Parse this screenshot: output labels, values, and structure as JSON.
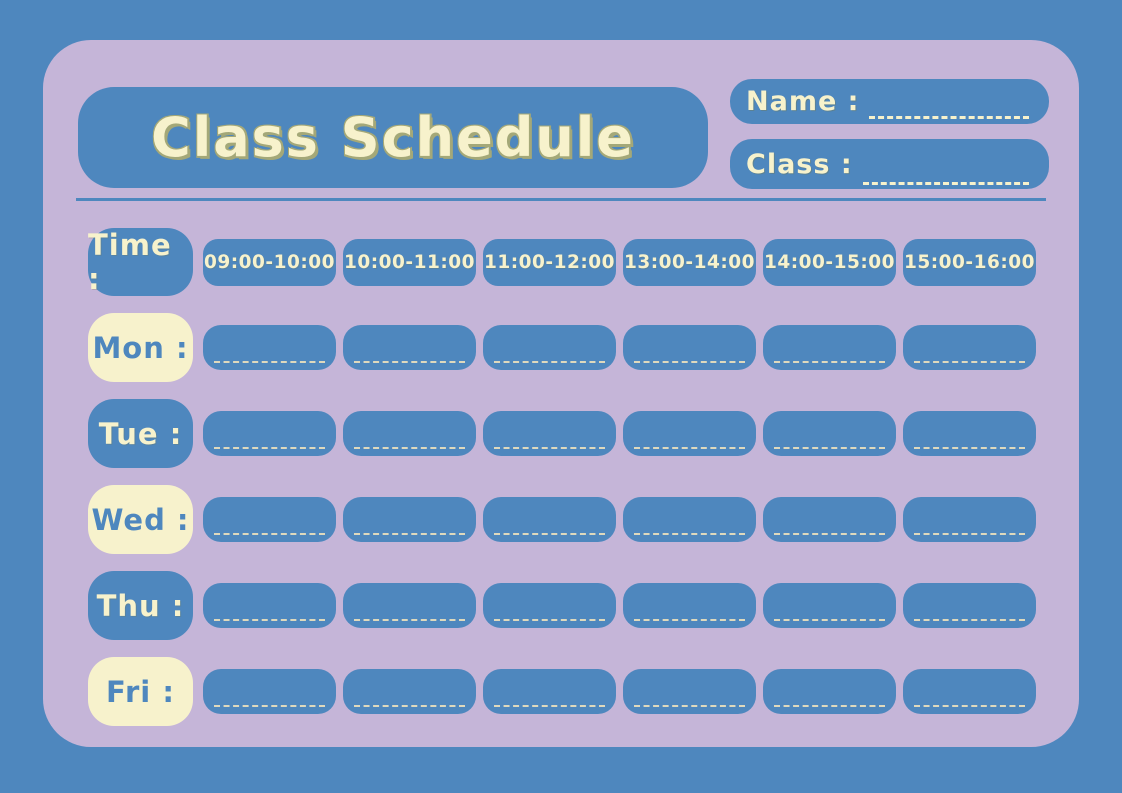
{
  "title": "Class Schedule",
  "header_fields": {
    "name": {
      "label": "Name :",
      "value": ""
    },
    "class": {
      "label": "Class :",
      "value": ""
    }
  },
  "schedule": {
    "time_label": "Time :",
    "time_slots": [
      "09:00-10:00",
      "10:00-11:00",
      "11:00-12:00",
      "13:00-14:00",
      "14:00-15:00",
      "15:00-16:00"
    ],
    "days": [
      {
        "label": "Mon :",
        "variant": "cream"
      },
      {
        "label": "Tue :",
        "variant": "blue"
      },
      {
        "label": "Wed :",
        "variant": "cream"
      },
      {
        "label": "Thu :",
        "variant": "blue"
      },
      {
        "label": "Fri :",
        "variant": "cream"
      }
    ],
    "cell_value": ""
  },
  "colors": {
    "background_blue": "#4e87be",
    "card_lavender": "#c5b5d8",
    "box_blue": "#4e87be",
    "cream": "#f7f2cc",
    "cell_dash": "#ded9bd",
    "title_outline_olive": "#a4a878"
  }
}
